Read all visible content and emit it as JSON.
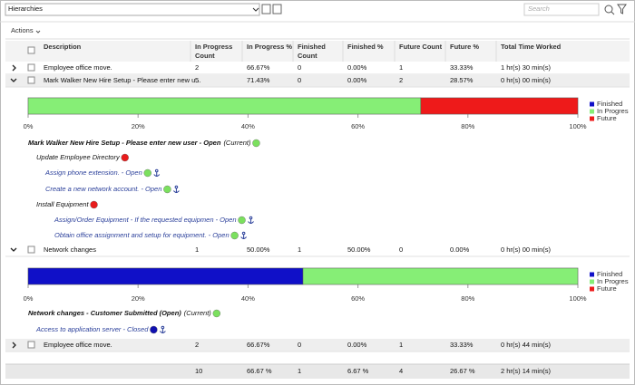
{
  "toolbar": {
    "dropdown": "Hierarchies",
    "search_placeholder": "Search",
    "actions": "Actions"
  },
  "table": {
    "headers": [
      "Description",
      "In Progress Count",
      "In Progress %",
      "Finished Count",
      "Finished %",
      "Future Count",
      "Future %",
      "Total Time Worked"
    ],
    "rows": [
      [
        "Employee office move.",
        "2",
        "66.67%",
        "0",
        "0.00%",
        "1",
        "33.33%",
        "1 hr(s) 30 min(s)"
      ],
      [
        "Mark Walker New Hire Setup - Please enter new u...",
        "5",
        "71.43%",
        "0",
        "0.00%",
        "2",
        "28.57%",
        "0 hr(s) 00 min(s)"
      ],
      [
        "Network changes",
        "1",
        "50.00%",
        "1",
        "50.00%",
        "0",
        "0.00%",
        "0 hr(s) 00 min(s)"
      ],
      [
        "Employee office move.",
        "2",
        "66.67%",
        "0",
        "0.00%",
        "1",
        "33.33%",
        "0 hr(s) 44 min(s)"
      ]
    ],
    "totals": [
      "10",
      "66.67 %",
      "1",
      "6.67 %",
      "4",
      "26.67 %",
      "2 hr(s) 14 min(s)"
    ]
  },
  "details": [
    {
      "chart_data": {
        "type": "bar",
        "orientation": "horizontal",
        "stacked": true,
        "categories": [
          null
        ],
        "series": [
          {
            "name": "Finished",
            "color": "#1010c8",
            "values": [
              0
            ]
          },
          {
            "name": "In Progres",
            "color": "#86ee76",
            "values": [
              71.43
            ]
          },
          {
            "name": "Future",
            "color": "#ee1a1a",
            "values": [
              28.57
            ]
          }
        ],
        "xlim": [
          0,
          100
        ],
        "xticks": [
          {
            "value": 0,
            "label": "0%"
          },
          {
            "value": 20,
            "label": "20%"
          },
          {
            "value": 40,
            "label": "40%"
          },
          {
            "value": 60,
            "label": "60%"
          },
          {
            "value": 80,
            "label": "80%"
          },
          {
            "value": 100,
            "label": "100%"
          }
        ]
      },
      "tree": [
        {
          "label": "Mark Walker New Hire Setup - Please enter new user - Open",
          "suffix": "(Current)",
          "level": 0,
          "status_color": "#7be05e",
          "anchor": false
        },
        {
          "label": "Update Employee Directory",
          "level": 1,
          "status_color": "#e81c1c",
          "anchor": false
        },
        {
          "label": "Assign phone extension. - Open",
          "level": 2,
          "status_color": "#7be05e",
          "anchor": true
        },
        {
          "label": "Create a new network account. - Open",
          "level": 2,
          "status_color": "#7be05e",
          "anchor": true
        },
        {
          "label": "Install Equipment",
          "level": 1,
          "status_color": "#e81c1c",
          "anchor": false
        },
        {
          "label": "Assign/Order Equipment - If the requested equipmen - Open",
          "level": 3,
          "status_color": "#7be05e",
          "anchor": true
        },
        {
          "label": "Obtain office assignment and setup for equipment. - Open",
          "level": 3,
          "status_color": "#7be05e",
          "anchor": true
        }
      ]
    },
    {
      "chart_data": {
        "type": "bar",
        "orientation": "horizontal",
        "stacked": true,
        "categories": [
          null
        ],
        "series": [
          {
            "name": "Finished",
            "color": "#1010c8",
            "values": [
              50
            ]
          },
          {
            "name": "In Progres",
            "color": "#86ee76",
            "values": [
              50
            ]
          },
          {
            "name": "Future",
            "color": "#ee1a1a",
            "values": [
              0
            ]
          }
        ],
        "xlim": [
          0,
          100
        ],
        "xticks": [
          {
            "value": 0,
            "label": "0%"
          },
          {
            "value": 20,
            "label": "20%"
          },
          {
            "value": 40,
            "label": "40%"
          },
          {
            "value": 60,
            "label": "60%"
          },
          {
            "value": 80,
            "label": "80%"
          },
          {
            "value": 100,
            "label": "100%"
          }
        ]
      },
      "tree": [
        {
          "label": "Network changes - Customer Submitted (Open)",
          "suffix": "(Current)",
          "level": 0,
          "status_color": "#7be05e",
          "anchor": false
        },
        {
          "label": "Access to application server - Closed",
          "level": 1,
          "status_color": "#1010b0",
          "anchor": true
        }
      ]
    }
  ]
}
